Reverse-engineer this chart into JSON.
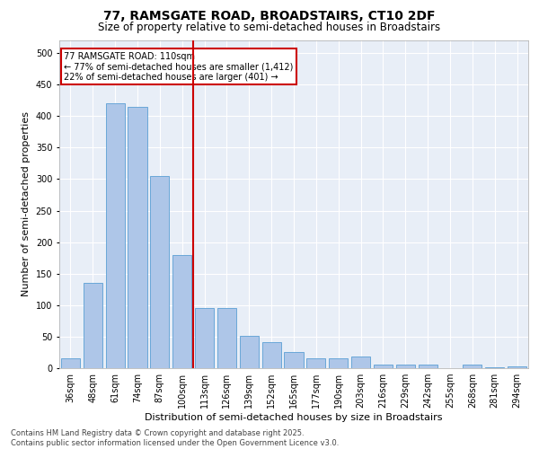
{
  "title": "77, RAMSGATE ROAD, BROADSTAIRS, CT10 2DF",
  "subtitle": "Size of property relative to semi-detached houses in Broadstairs",
  "xlabel": "Distribution of semi-detached houses by size in Broadstairs",
  "ylabel": "Number of semi-detached properties",
  "categories": [
    "36sqm",
    "48sqm",
    "61sqm",
    "74sqm",
    "87sqm",
    "100sqm",
    "113sqm",
    "126sqm",
    "139sqm",
    "152sqm",
    "165sqm",
    "177sqm",
    "190sqm",
    "203sqm",
    "216sqm",
    "229sqm",
    "242sqm",
    "255sqm",
    "268sqm",
    "281sqm",
    "294sqm"
  ],
  "values": [
    15,
    135,
    420,
    415,
    305,
    180,
    95,
    95,
    52,
    42,
    25,
    15,
    15,
    18,
    5,
    6,
    6,
    0,
    6,
    2,
    3
  ],
  "bar_color": "#aec6e8",
  "bar_edge_color": "#5a9fd4",
  "highlight_index": 6,
  "highlight_line_color": "#cc0000",
  "annotation_text": "77 RAMSGATE ROAD: 110sqm\n← 77% of semi-detached houses are smaller (1,412)\n22% of semi-detached houses are larger (401) →",
  "annotation_box_color": "#cc0000",
  "ylim": [
    0,
    520
  ],
  "yticks": [
    0,
    50,
    100,
    150,
    200,
    250,
    300,
    350,
    400,
    450,
    500
  ],
  "background_color": "#e8eef7",
  "footer_text": "Contains HM Land Registry data © Crown copyright and database right 2025.\nContains public sector information licensed under the Open Government Licence v3.0.",
  "title_fontsize": 10,
  "subtitle_fontsize": 8.5,
  "xlabel_fontsize": 8,
  "ylabel_fontsize": 8,
  "tick_fontsize": 7,
  "footer_fontsize": 6,
  "ann_fontsize": 7
}
